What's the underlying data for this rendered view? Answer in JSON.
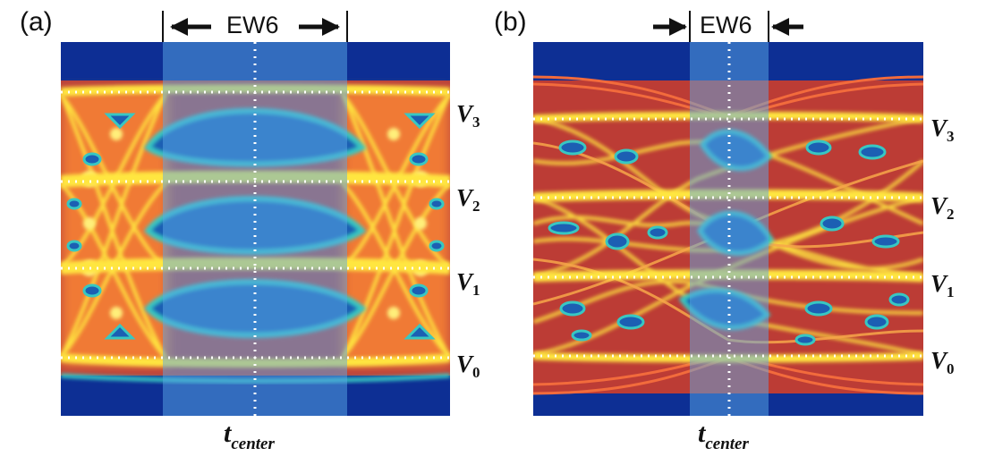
{
  "panels": [
    {
      "id": "a",
      "label": "(a)",
      "window_label": "EW6",
      "x_label_main": "t",
      "x_label_sub": "center",
      "levels": [
        {
          "name": "V",
          "sub": "3"
        },
        {
          "name": "V",
          "sub": "2"
        },
        {
          "name": "V",
          "sub": "1"
        },
        {
          "name": "V",
          "sub": "0"
        }
      ]
    },
    {
      "id": "b",
      "label": "(b)",
      "window_label": "EW6",
      "x_label_main": "t",
      "x_label_sub": "center",
      "levels": [
        {
          "name": "V",
          "sub": "3"
        },
        {
          "name": "V",
          "sub": "2"
        },
        {
          "name": "V",
          "sub": "1"
        },
        {
          "name": "V",
          "sub": "0"
        }
      ]
    }
  ],
  "colors": {
    "background": "#0d2f94",
    "eye_open": "#1c5fb3",
    "window_overlay": "#5aa9e8",
    "trace_hot": "#ffe640",
    "trace_warm": "#f47a35",
    "trace_cool": "#38c7c2",
    "guide_line": "#ffffff"
  }
}
